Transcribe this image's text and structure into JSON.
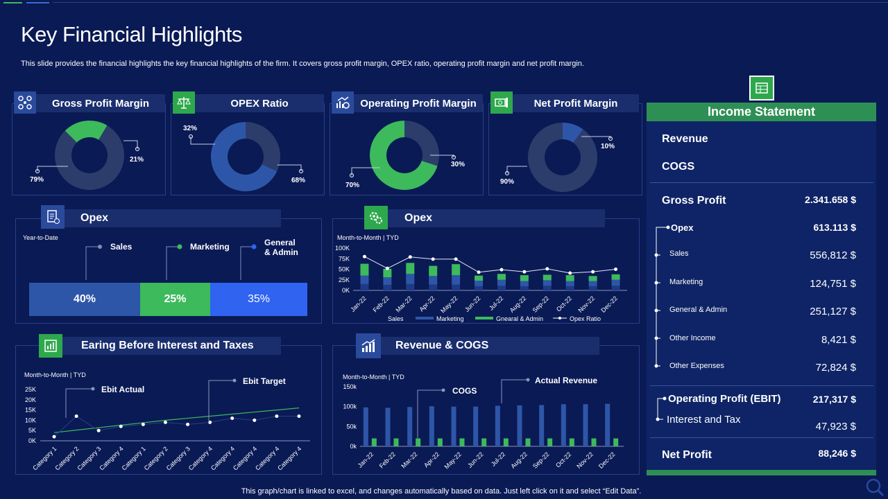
{
  "page": {
    "title": "Key Financial Highlights",
    "subtitle": "This slide provides the financial highlights the key financial highlights of the firm. It covers gross profit margin, OPEX ratio, operating profit margin and net profit margin.",
    "footer": "This graph/chart is linked to excel, and changes automatically based on data. Just left click on it and select “Edit Data”."
  },
  "colors": {
    "background": "#0a1a55",
    "green": "#3dba5c",
    "blue": "#2e56a8",
    "dark_slate": "#2d3d6b",
    "bright_blue": "#2f63f0"
  },
  "kpis": [
    {
      "title": "Gross Profit Margin",
      "icon": "network-icon",
      "values": [
        "21%",
        "79%"
      ]
    },
    {
      "title": "OPEX Ratio",
      "icon": "scales-icon",
      "values": [
        "32%",
        "68%"
      ]
    },
    {
      "title": "Operating Profit Margin",
      "icon": "growth-icon",
      "values": [
        "30%",
        "70%"
      ]
    },
    {
      "title": "Net Profit Margin",
      "icon": "money-icon",
      "values": [
        "10%",
        "90%"
      ]
    }
  ],
  "opex_ytd": {
    "title": "Opex",
    "period": "Year-to-Date",
    "legend": [
      "Sales",
      "Marketing",
      "General & Admin"
    ],
    "segments": [
      "40%",
      "25%",
      "35%"
    ]
  },
  "opex_monthly": {
    "title": "Opex",
    "period": "Month-to-Month  | TYD",
    "legend": [
      "Sales",
      "Marketing",
      "Gnearal & Admin",
      "Opex Ratio"
    ]
  },
  "ebit": {
    "title": "Earing Before Interest and Taxes",
    "period": "Month-to-Month  | TYD",
    "callouts": [
      "Ebit Actual",
      "Ebit Target"
    ]
  },
  "revenue_cogs": {
    "title": "Revenue & COGS",
    "period": "Month-to-Month  | TYD",
    "callouts": [
      "COGS",
      "Actual Revenue"
    ]
  },
  "chart_data": [
    {
      "type": "pie",
      "title": "Gross Profit Margin",
      "labels": [
        "21%",
        "79%"
      ],
      "values": [
        21,
        79
      ]
    },
    {
      "type": "pie",
      "title": "OPEX Ratio",
      "labels": [
        "32%",
        "68%"
      ],
      "values": [
        32,
        68
      ]
    },
    {
      "type": "pie",
      "title": "Operating Profit Margin",
      "labels": [
        "30%",
        "70%"
      ],
      "values": [
        30,
        70
      ]
    },
    {
      "type": "pie",
      "title": "Net Profit Margin",
      "labels": [
        "10%",
        "90%"
      ],
      "values": [
        10,
        90
      ]
    },
    {
      "type": "bar",
      "title": "Opex",
      "categories": [
        "Jan-22",
        "Feb-22",
        "Mar-22",
        "Apr-22",
        "May-22",
        "Jun-22",
        "Jul-22",
        "Aug-22",
        "Sep-22",
        "Oct-22",
        "Nov-22",
        "Dec-22"
      ],
      "yticks": [
        "100K",
        "75K",
        "50K",
        "25K",
        "0K"
      ],
      "ylim": [
        0,
        100000
      ],
      "series": [
        {
          "name": "Sales",
          "values": [
            15000,
            13000,
            15000,
            14000,
            14000,
            10000,
            11000,
            10000,
            11000,
            10000,
            10000,
            11000
          ]
        },
        {
          "name": "Marketing",
          "values": [
            20000,
            18000,
            24000,
            20000,
            22000,
            13000,
            14000,
            12000,
            13000,
            12000,
            12000,
            14000
          ]
        },
        {
          "name": "Gnearal & Admin",
          "values": [
            28000,
            20000,
            26000,
            24000,
            26000,
            12000,
            14000,
            14000,
            13000,
            14000,
            12000,
            13000
          ]
        },
        {
          "name": "Opex Ratio",
          "values": [
            80000,
            52000,
            79000,
            74000,
            74000,
            43000,
            49000,
            44000,
            51000,
            41000,
            44000,
            50000
          ]
        }
      ]
    },
    {
      "type": "line",
      "title": "Earing Before Interest and Taxes",
      "categories": [
        "Category 1",
        "Category 2",
        "Category 3",
        "Category 4",
        "Category 1",
        "Category 2",
        "Category 3",
        "Category 4",
        "Category 4",
        "Category 4",
        "Category 4",
        "Category 4"
      ],
      "yticks": [
        "25K",
        "20K",
        "15K",
        "10K",
        "5K",
        "0K"
      ],
      "ylim": [
        0,
        25000
      ],
      "series": [
        {
          "name": "Ebit Actual",
          "values": [
            2000,
            12000,
            5000,
            7000,
            8000,
            9000,
            8000,
            9000,
            11000,
            10000,
            12000,
            12000
          ]
        },
        {
          "name": "Ebit Target",
          "values": [
            4000,
            5200,
            6400,
            7600,
            8800,
            10000,
            11000,
            12000,
            13000,
            14000,
            15000,
            16000
          ]
        }
      ]
    },
    {
      "type": "bar",
      "title": "Revenue & COGS",
      "categories": [
        "Jan-22",
        "Feb-22",
        "Mar-22",
        "Apr-22",
        "May-22",
        "Jun-22",
        "Jul-22",
        "Aug-22",
        "Sep-22",
        "Oct-22",
        "Nov-22",
        "Dec-22"
      ],
      "yticks": [
        "150k",
        "100k",
        "50k",
        "0k"
      ],
      "ylim": [
        0,
        150000
      ],
      "series": [
        {
          "name": "Actual Revenue",
          "values": [
            98000,
            97000,
            99000,
            101000,
            100000,
            100000,
            102000,
            103000,
            104000,
            106000,
            106000,
            107000
          ]
        },
        {
          "name": "COGS",
          "values": [
            20000,
            20000,
            20000,
            20000,
            20000,
            20000,
            20000,
            20000,
            20000,
            20000,
            20000,
            20000
          ]
        }
      ]
    }
  ],
  "income_statement": {
    "title": "Income Statement",
    "revenue_label": "Revenue",
    "cogs_label": "COGS",
    "gross_profit": {
      "label": "Gross Profit",
      "value": "2.341.658 $"
    },
    "opex": {
      "label": "Opex",
      "value": "613.113 $"
    },
    "items": [
      {
        "label": "Sales",
        "value": "556,812 $"
      },
      {
        "label": "Marketing",
        "value": "124,751 $"
      },
      {
        "label": "General & Admin",
        "value": "251,127 $"
      },
      {
        "label": "Other Income",
        "value": "8,421 $"
      },
      {
        "label": "Other Expenses",
        "value": "72,824 $"
      }
    ],
    "operating_profit": {
      "label": "Operating Profit (EBIT)",
      "value": "217,317 $"
    },
    "interest_tax": {
      "label": "Interest  and Tax",
      "value": "47,923 $"
    },
    "net_profit": {
      "label": "Net Profit",
      "value": "88,246 $"
    }
  }
}
